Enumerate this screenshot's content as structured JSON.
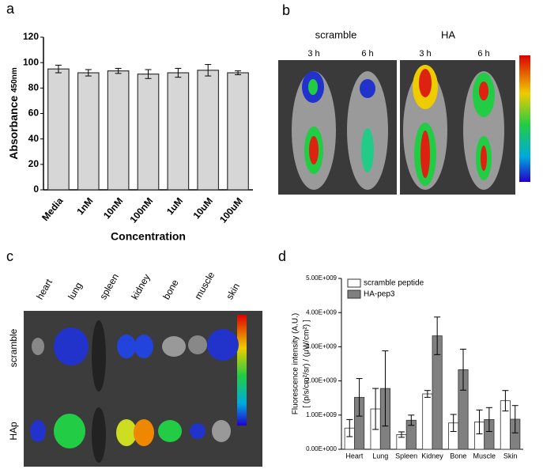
{
  "chart_data": [
    {
      "type": "bar",
      "panel": "a",
      "ylabel": "Absorbance",
      "ylabel_sub": "450nm",
      "xlabel": "Concentration",
      "categories": [
        "Media",
        "1nM",
        "10nM",
        "100nM",
        "1uM",
        "10uM",
        "100uM"
      ],
      "values": [
        95,
        92,
        93.5,
        91,
        92,
        94,
        92
      ],
      "errors": [
        3,
        2.5,
        2,
        3.5,
        3.5,
        4.5,
        1.5
      ],
      "color": "#d6d6d6",
      "ylim": [
        0,
        120
      ],
      "yticks": [
        0,
        20,
        40,
        60,
        80,
        100,
        120
      ]
    },
    {
      "type": "bar",
      "panel": "d",
      "ylabel": "Fluorescence intensity (A.U.)",
      "ylabel2": "[ (p/s/cm²/sr) / (μW/cm²) ]",
      "categories": [
        "Heart",
        "Lung",
        "Spleen",
        "Kidney",
        "Bone",
        "Muscle",
        "Skin"
      ],
      "series": [
        {
          "name": "scramble peptide",
          "color": "#ffffff",
          "values": [
            620000000,
            1180000000,
            430000000,
            1620000000,
            770000000,
            800000000,
            1420000000
          ],
          "errors": [
            250000000,
            600000000,
            80000000,
            100000000,
            250000000,
            350000000,
            300000000
          ]
        },
        {
          "name": "HA-pep3",
          "color": "#808080",
          "values": [
            1520000000,
            1780000000,
            850000000,
            3320000000,
            2330000000,
            870000000,
            880000000
          ],
          "errors": [
            550000000,
            1100000000,
            150000000,
            550000000,
            600000000,
            350000000,
            400000000
          ]
        }
      ],
      "ylim": [
        0,
        5000000000
      ],
      "yticks": [
        {
          "value": 0,
          "label": "0.00E+000"
        },
        {
          "value": 1000000000,
          "label": "1.00E+009"
        },
        {
          "value": 2000000000,
          "label": "2.00E+009"
        },
        {
          "value": 3000000000,
          "label": "3.00E+009"
        },
        {
          "value": 4000000000,
          "label": "4.00E+009"
        },
        {
          "value": 5000000000,
          "label": "5.00E+009"
        }
      ]
    }
  ],
  "panel_b": {
    "label": "b",
    "groups": [
      "scramble",
      "HA"
    ],
    "times": [
      "3 h",
      "6 h",
      "3 h",
      "6 h"
    ]
  },
  "panel_c": {
    "label": "c",
    "organs": [
      "heart",
      "lung",
      "spleen",
      "kidney",
      "bone",
      "muscle",
      "skin"
    ],
    "rows": [
      "scramble",
      "HAp"
    ]
  }
}
